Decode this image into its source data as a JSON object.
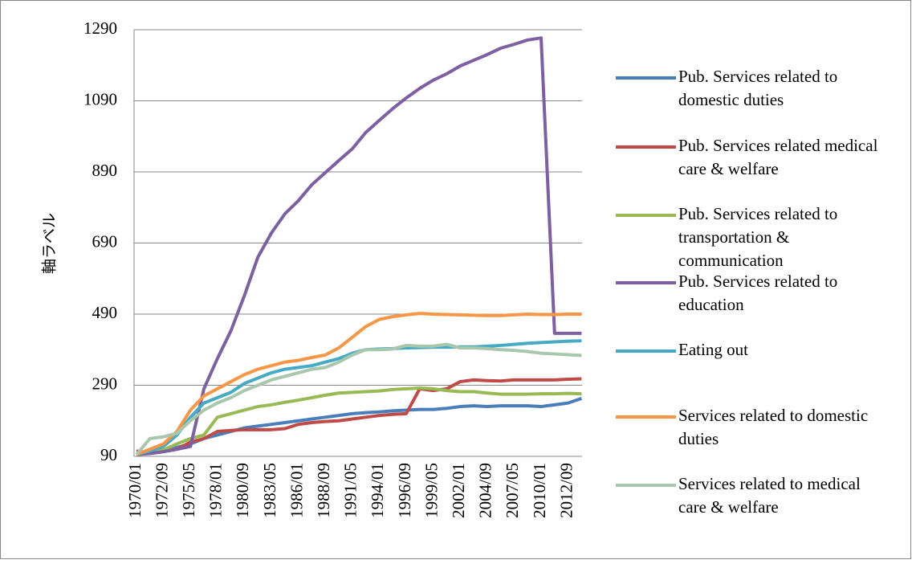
{
  "chart_data": {
    "type": "line",
    "y_label": "軸ラベル",
    "categories": [
      "1970/01",
      null,
      "1972/09",
      null,
      "1975/05",
      null,
      "1978/01",
      null,
      "1980/09",
      null,
      "1983/05",
      null,
      "1986/01",
      null,
      "1988/09",
      null,
      "1991/05",
      null,
      "1994/01",
      null,
      "1996/09",
      null,
      "1999/05",
      null,
      "2002/01",
      null,
      "2004/09",
      null,
      "2007/05",
      null,
      "2010/01",
      null,
      "2012/09",
      null
    ],
    "ylim": [
      90,
      1290
    ],
    "yticks": [
      90,
      290,
      490,
      690,
      890,
      1090,
      1290
    ],
    "grid": true,
    "series": [
      {
        "name": "Pub. Services related to domestic duties",
        "color": "#4a7ebb",
        "values": [
          95,
          100,
          108,
          115,
          125,
          140,
          150,
          160,
          170,
          175,
          180,
          185,
          190,
          195,
          200,
          205,
          210,
          213,
          215,
          218,
          220,
          222,
          222,
          225,
          230,
          232,
          230,
          232,
          232,
          232,
          230,
          235,
          240,
          253
        ]
      },
      {
        "name": "Pub. Services related medical care & welfare",
        "color": "#be4b48",
        "values": [
          105,
          100,
          105,
          110,
          130,
          140,
          160,
          163,
          165,
          165,
          165,
          168,
          180,
          185,
          188,
          190,
          195,
          200,
          205,
          208,
          210,
          280,
          275,
          280,
          300,
          305,
          303,
          302,
          305,
          305,
          305,
          305,
          307,
          308
        ]
      },
      {
        "name": "Pub. Services related to transportation & communication",
        "color": "#98b954",
        "values": [
          95,
          100,
          108,
          125,
          140,
          150,
          200,
          210,
          220,
          230,
          235,
          242,
          248,
          255,
          262,
          268,
          270,
          272,
          274,
          278,
          280,
          282,
          280,
          275,
          272,
          272,
          268,
          265,
          265,
          265,
          266,
          266,
          267,
          266
        ]
      },
      {
        "name": "Pub. Services related to education",
        "color": "#7d60a0",
        "values": [
          95,
          98,
          103,
          110,
          118,
          280,
          365,
          443,
          542,
          650,
          718,
          772,
          809,
          854,
          888,
          922,
          955,
          1001,
          1035,
          1068,
          1098,
          1125,
          1148,
          1166,
          1188,
          1204,
          1220,
          1238,
          1249,
          1261,
          1267,
          436,
          436,
          436
        ]
      },
      {
        "name": "Eating out",
        "color": "#46aac5",
        "values": [
          95,
          105,
          118,
          150,
          200,
          240,
          255,
          270,
          295,
          310,
          325,
          335,
          340,
          345,
          355,
          365,
          380,
          390,
          392,
          393,
          395,
          396,
          397,
          397,
          398,
          398,
          400,
          402,
          405,
          408,
          410,
          412,
          414,
          415
        ]
      },
      {
        "name": "Services related to domestic duties",
        "color": "#f79646",
        "values": [
          95,
          110,
          125,
          160,
          220,
          260,
          280,
          300,
          320,
          335,
          345,
          355,
          360,
          368,
          375,
          395,
          425,
          455,
          475,
          483,
          488,
          492,
          490,
          489,
          488,
          487,
          486,
          486,
          488,
          490,
          489,
          489,
          490,
          490
        ]
      },
      {
        "name": "Services related to medical care & welfare",
        "color": "#a9c7ad",
        "values": [
          95,
          140,
          145,
          155,
          190,
          220,
          240,
          255,
          275,
          290,
          305,
          315,
          325,
          335,
          340,
          355,
          375,
          390,
          390,
          392,
          402,
          400,
          400,
          405,
          395,
          395,
          393,
          390,
          388,
          385,
          380,
          378,
          376,
          374
        ]
      }
    ]
  }
}
